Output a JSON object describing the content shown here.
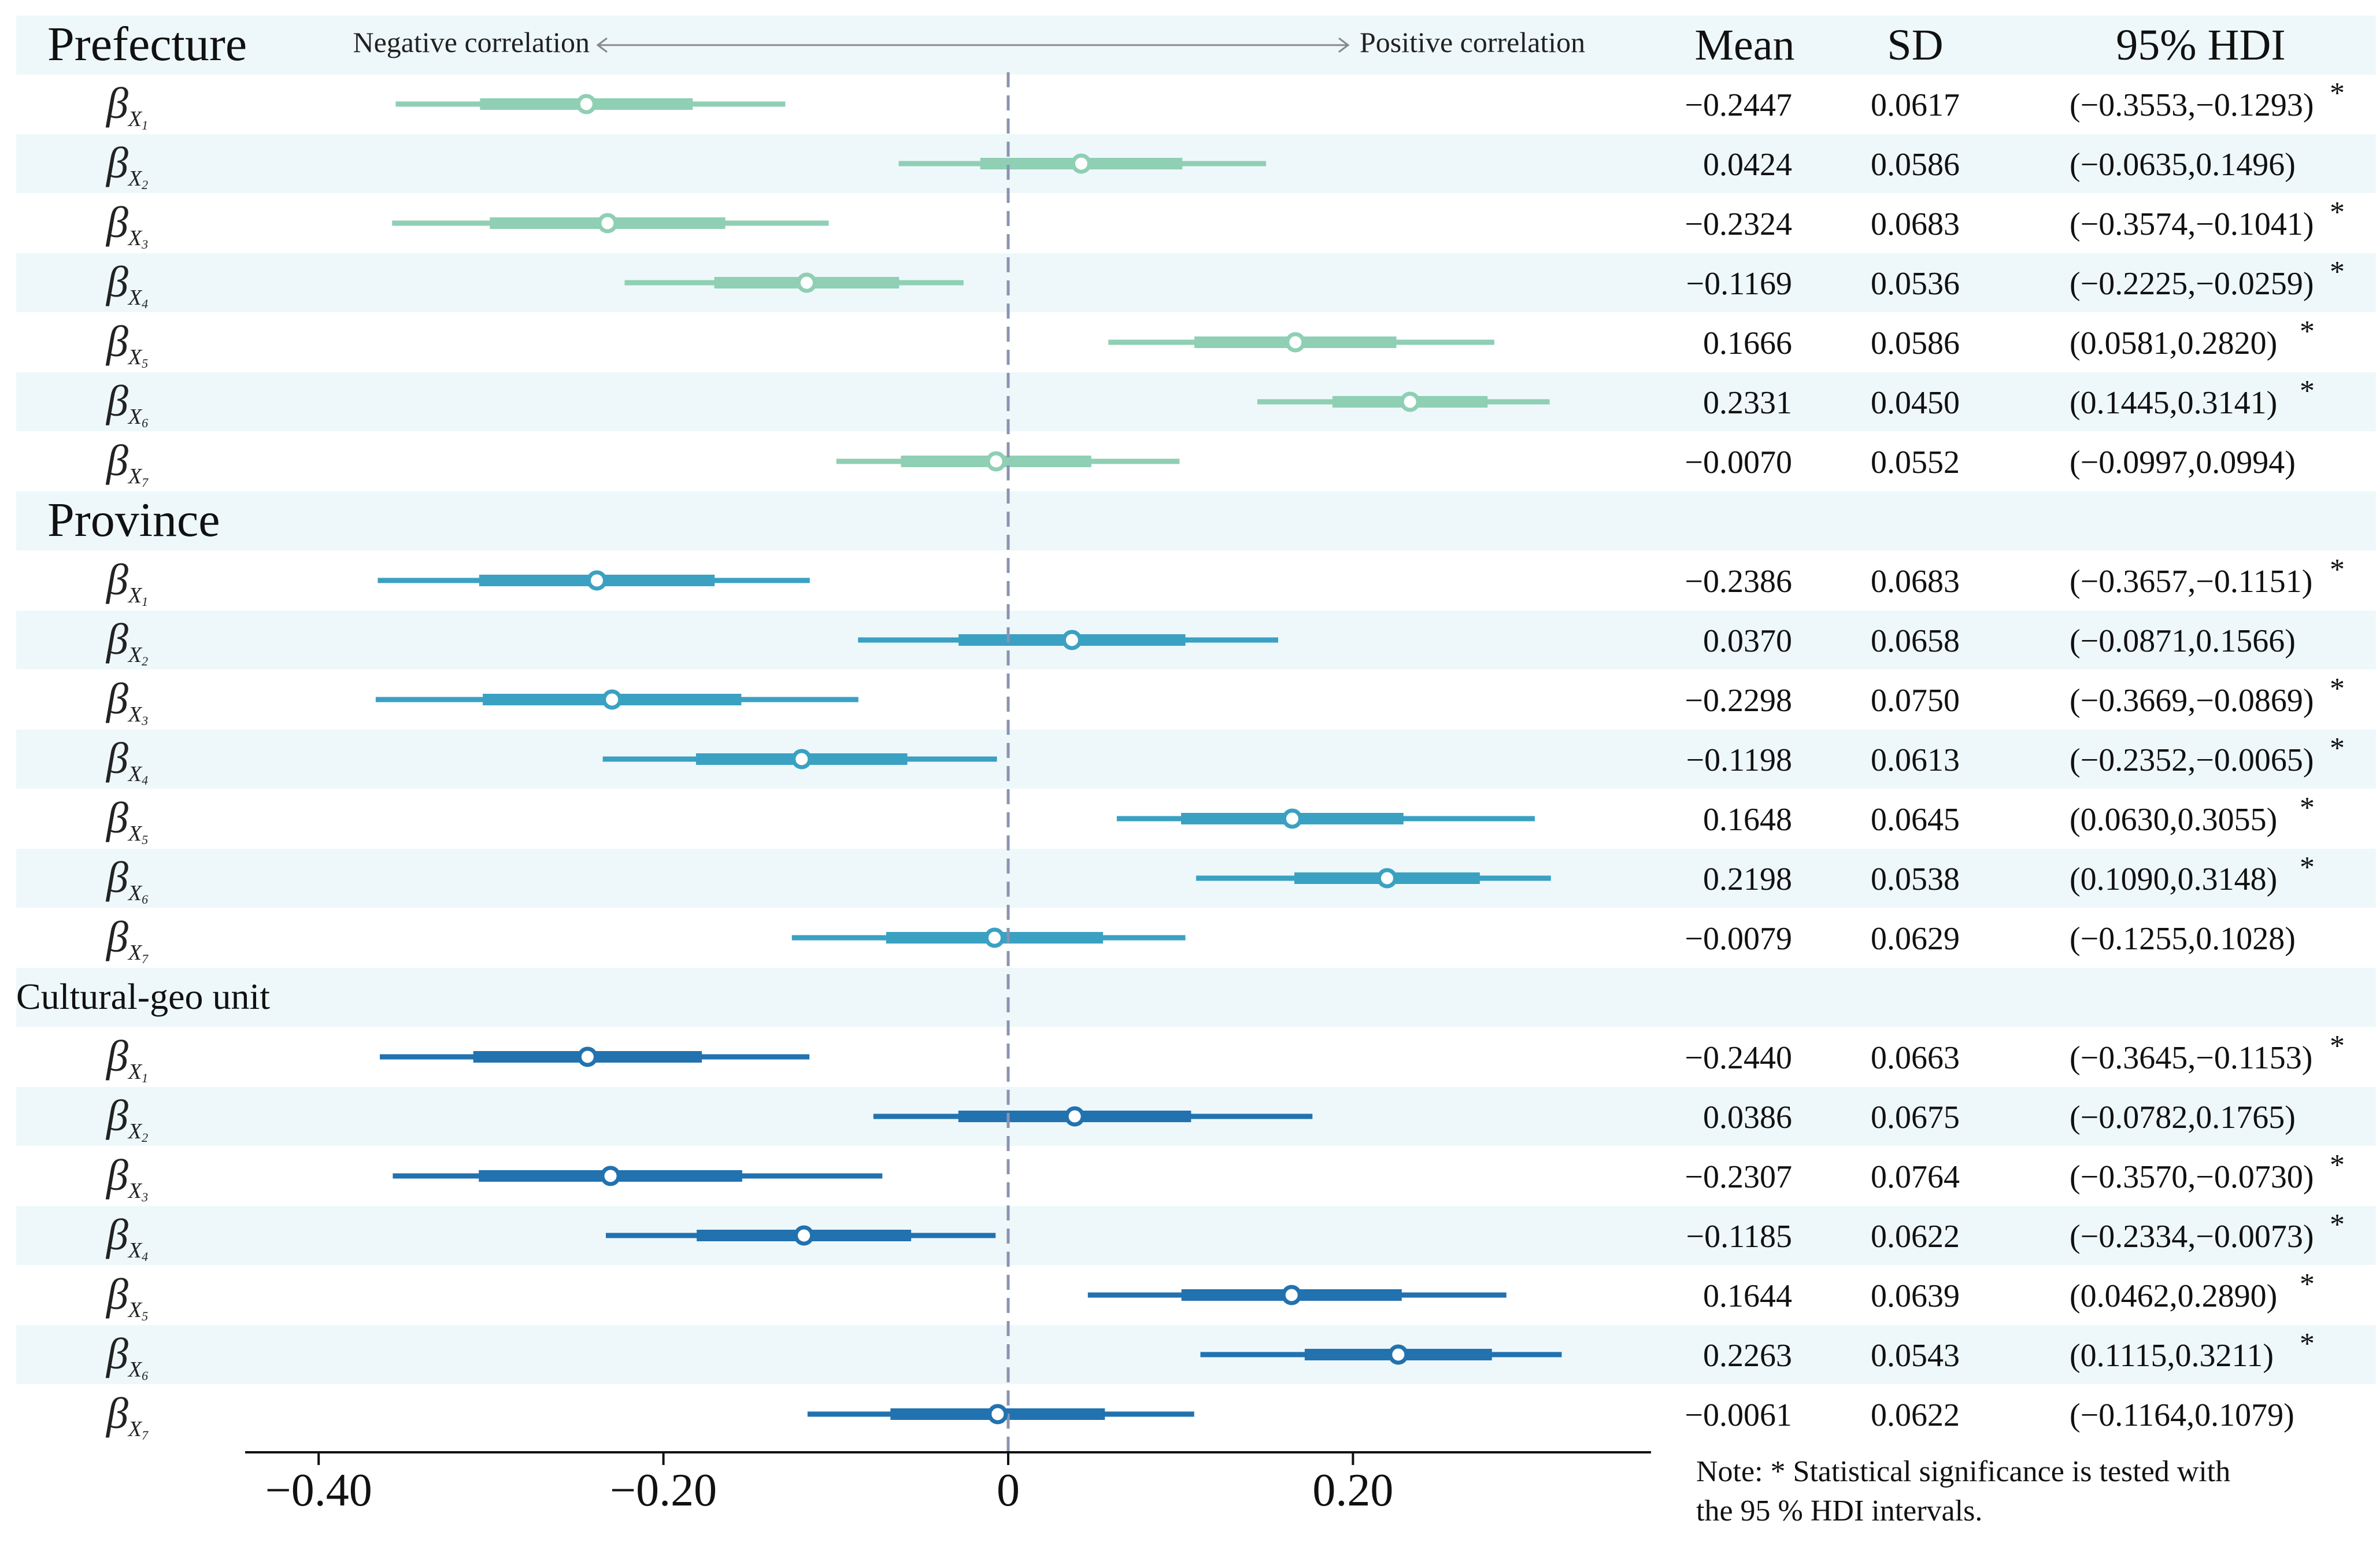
{
  "chart_data": {
    "type": "forest",
    "header": {
      "left_arrow_label": "Negative correlation",
      "right_arrow_label": "Positive correlation",
      "col_mean": "Mean",
      "col_sd": "SD",
      "col_hdi": "95% HDI"
    },
    "xlim": [
      -0.45,
      0.37
    ],
    "xticks": [
      -0.4,
      -0.2,
      0,
      0.2
    ],
    "xtick_labels": [
      "−0.40",
      "−0.20",
      "0",
      "0.20"
    ],
    "reference_line": 0,
    "note_line1": "Note: * Statistical significance is tested with",
    "note_line2": "the 95 % HDI intervals.",
    "groups": [
      {
        "name": "Prefecture",
        "color": "#8fcfb4",
        "rows": [
          {
            "var": "X",
            "sub": "1",
            "mean": -0.2447,
            "sd": 0.0617,
            "lo": -0.3553,
            "hi": -0.1293,
            "mean_text": "−0.2447",
            "sd_text": "0.0617",
            "hdi_text": "(−0.3553,−0.1293)",
            "sig": "*"
          },
          {
            "var": "X",
            "sub": "2",
            "mean": 0.0424,
            "sd": 0.0586,
            "lo": -0.0635,
            "hi": 0.1496,
            "mean_text": "0.0424",
            "sd_text": "0.0586",
            "hdi_text": "(−0.0635,0.1496)",
            "sig": ""
          },
          {
            "var": "X",
            "sub": "3",
            "mean": -0.2324,
            "sd": 0.0683,
            "lo": -0.3574,
            "hi": -0.1041,
            "mean_text": "−0.2324",
            "sd_text": "0.0683",
            "hdi_text": "(−0.3574,−0.1041)",
            "sig": "*"
          },
          {
            "var": "X",
            "sub": "4",
            "mean": -0.1169,
            "sd": 0.0536,
            "lo": -0.2225,
            "hi": -0.0259,
            "mean_text": "−0.1169",
            "sd_text": "0.0536",
            "hdi_text": "(−0.2225,−0.0259)",
            "sig": "*"
          },
          {
            "var": "X",
            "sub": "5",
            "mean": 0.1666,
            "sd": 0.0586,
            "lo": 0.0581,
            "hi": 0.282,
            "mean_text": "0.1666",
            "sd_text": "0.0586",
            "hdi_text": "(0.0581,0.2820)",
            "sig": "*"
          },
          {
            "var": "X",
            "sub": "6",
            "mean": 0.2331,
            "sd": 0.045,
            "lo": 0.1445,
            "hi": 0.3141,
            "mean_text": "0.2331",
            "sd_text": "0.0450",
            "hdi_text": "(0.1445,0.3141)",
            "sig": "*"
          },
          {
            "var": "X",
            "sub": "7",
            "mean": -0.007,
            "sd": 0.0552,
            "lo": -0.0997,
            "hi": 0.0994,
            "mean_text": "−0.0070",
            "sd_text": "0.0552",
            "hdi_text": "(−0.0997,0.0994)",
            "sig": ""
          }
        ]
      },
      {
        "name": "Province",
        "color": "#3aa1c2",
        "rows": [
          {
            "var": "X",
            "sub": "1",
            "mean": -0.2386,
            "sd": 0.0683,
            "lo": -0.3657,
            "hi": -0.1151,
            "mean_text": "−0.2386",
            "sd_text": "0.0683",
            "hdi_text": "(−0.3657,−0.1151)",
            "sig": "*"
          },
          {
            "var": "X",
            "sub": "2",
            "mean": 0.037,
            "sd": 0.0658,
            "lo": -0.0871,
            "hi": 0.1566,
            "mean_text": "0.0370",
            "sd_text": "0.0658",
            "hdi_text": "(−0.0871,0.1566)",
            "sig": ""
          },
          {
            "var": "X",
            "sub": "3",
            "mean": -0.2298,
            "sd": 0.075,
            "lo": -0.3669,
            "hi": -0.0869,
            "mean_text": "−0.2298",
            "sd_text": "0.0750",
            "hdi_text": "(−0.3669,−0.0869)",
            "sig": "*"
          },
          {
            "var": "X",
            "sub": "4",
            "mean": -0.1198,
            "sd": 0.0613,
            "lo": -0.2352,
            "hi": -0.0065,
            "mean_text": "−0.1198",
            "sd_text": "0.0613",
            "hdi_text": "(−0.2352,−0.0065)",
            "sig": "*"
          },
          {
            "var": "X",
            "sub": "5",
            "mean": 0.1648,
            "sd": 0.0645,
            "lo": 0.063,
            "hi": 0.3055,
            "mean_text": "0.1648",
            "sd_text": "0.0645",
            "hdi_text": "(0.0630,0.3055)",
            "sig": "*"
          },
          {
            "var": "X",
            "sub": "6",
            "mean": 0.2198,
            "sd": 0.0538,
            "lo": 0.109,
            "hi": 0.3148,
            "mean_text": "0.2198",
            "sd_text": "0.0538",
            "hdi_text": "(0.1090,0.3148)",
            "sig": "*"
          },
          {
            "var": "X",
            "sub": "7",
            "mean": -0.0079,
            "sd": 0.0629,
            "lo": -0.1255,
            "hi": 0.1028,
            "mean_text": "−0.0079",
            "sd_text": "0.0629",
            "hdi_text": "(−0.1255,0.1028)",
            "sig": ""
          }
        ]
      },
      {
        "name": "Cultural-geo unit",
        "color": "#2272b0",
        "rows": [
          {
            "var": "X",
            "sub": "1",
            "mean": -0.244,
            "sd": 0.0663,
            "lo": -0.3645,
            "hi": -0.1153,
            "mean_text": "−0.2440",
            "sd_text": "0.0663",
            "hdi_text": "(−0.3645,−0.1153)",
            "sig": "*"
          },
          {
            "var": "X",
            "sub": "2",
            "mean": 0.0386,
            "sd": 0.0675,
            "lo": -0.0782,
            "hi": 0.1765,
            "mean_text": "0.0386",
            "sd_text": "0.0675",
            "hdi_text": "(−0.0782,0.1765)",
            "sig": ""
          },
          {
            "var": "X",
            "sub": "3",
            "mean": -0.2307,
            "sd": 0.0764,
            "lo": -0.357,
            "hi": -0.073,
            "mean_text": "−0.2307",
            "sd_text": "0.0764",
            "hdi_text": "(−0.3570,−0.0730)",
            "sig": "*"
          },
          {
            "var": "X",
            "sub": "4",
            "mean": -0.1185,
            "sd": 0.0622,
            "lo": -0.2334,
            "hi": -0.0073,
            "mean_text": "−0.1185",
            "sd_text": "0.0622",
            "hdi_text": "(−0.2334,−0.0073)",
            "sig": "*"
          },
          {
            "var": "X",
            "sub": "5",
            "mean": 0.1644,
            "sd": 0.0639,
            "lo": 0.0462,
            "hi": 0.289,
            "mean_text": "0.1644",
            "sd_text": "0.0639",
            "hdi_text": "(0.0462,0.2890)",
            "sig": "*"
          },
          {
            "var": "X",
            "sub": "6",
            "mean": 0.2263,
            "sd": 0.0543,
            "lo": 0.1115,
            "hi": 0.3211,
            "mean_text": "0.2263",
            "sd_text": "0.0543",
            "hdi_text": "(0.1115,0.3211)",
            "sig": "*"
          },
          {
            "var": "X",
            "sub": "7",
            "mean": -0.0061,
            "sd": 0.0622,
            "lo": -0.1164,
            "hi": 0.1079,
            "mean_text": "−0.0061",
            "sd_text": "0.0622",
            "hdi_text": "(−0.1164,0.1079)",
            "sig": ""
          }
        ]
      }
    ]
  }
}
